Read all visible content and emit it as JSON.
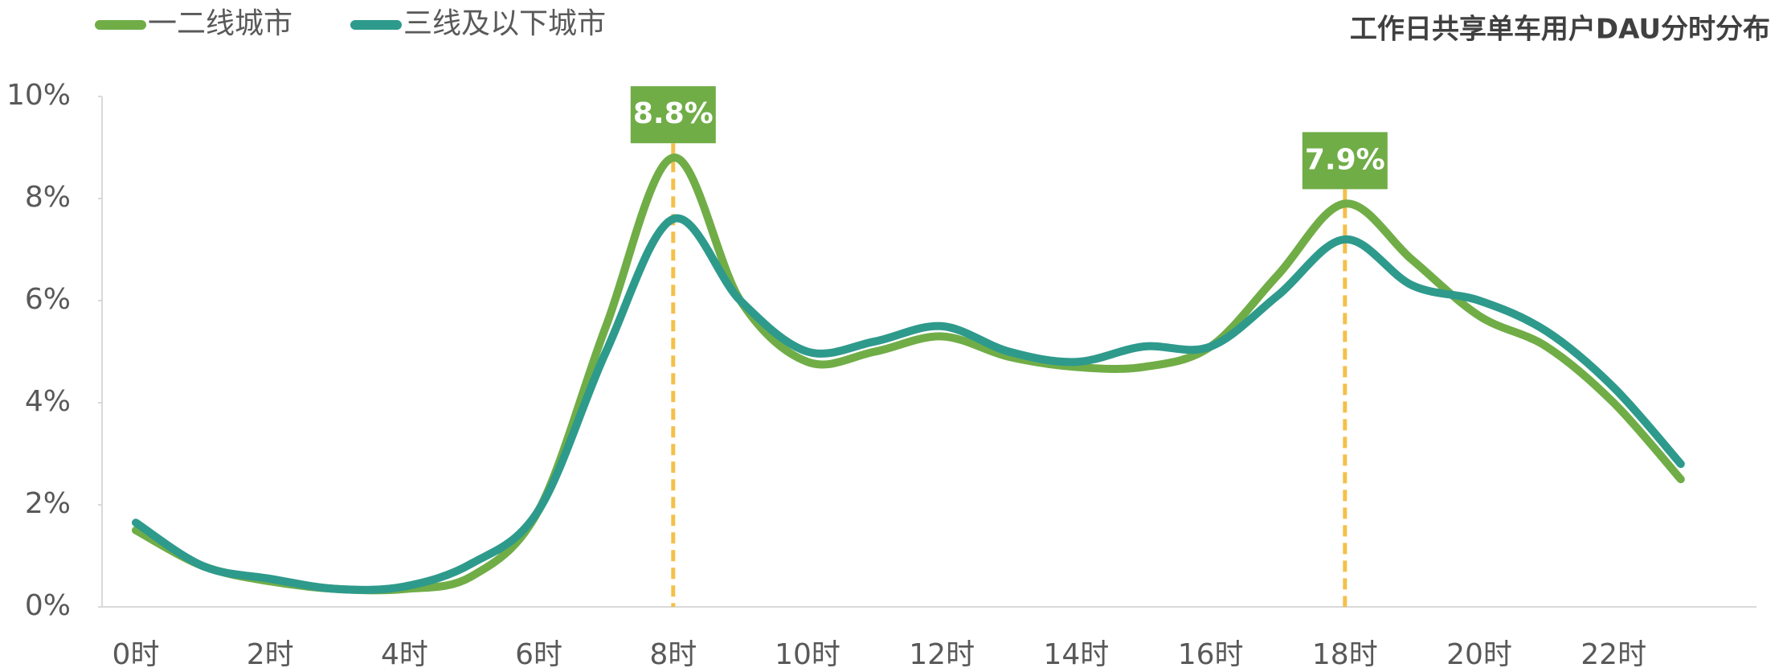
{
  "chart_data": {
    "type": "line",
    "title": "工作日共享单车用户DAU分时分布",
    "categories": [
      "0时",
      null,
      "2时",
      null,
      "4时",
      null,
      "6时",
      null,
      "8时",
      null,
      "10时",
      null,
      "12时",
      null,
      "14时",
      null,
      "16时",
      null,
      "18时",
      null,
      "20时",
      null,
      "22时",
      null
    ],
    "series": [
      {
        "name": "一二线城市",
        "color": "#70ad47",
        "values": [
          1.5,
          0.8,
          0.5,
          0.35,
          0.35,
          0.6,
          1.9,
          5.5,
          8.8,
          6.0,
          4.8,
          5.0,
          5.3,
          4.9,
          4.7,
          4.7,
          5.1,
          6.5,
          7.9,
          6.8,
          5.7,
          5.1,
          4.0,
          2.5
        ]
      },
      {
        "name": "三线及以下城市",
        "color": "#2e9a8c",
        "values": [
          1.65,
          0.8,
          0.55,
          0.35,
          0.4,
          0.85,
          1.9,
          5.0,
          7.6,
          6.0,
          5.0,
          5.2,
          5.5,
          5.0,
          4.8,
          5.1,
          5.1,
          6.1,
          7.2,
          6.3,
          6.0,
          5.4,
          4.3,
          2.8
        ]
      }
    ],
    "ylim": [
      0,
      10
    ],
    "yticks": [
      {
        "value": 0,
        "label": "0%"
      },
      {
        "value": 2,
        "label": "2%"
      },
      {
        "value": 4,
        "label": "4%"
      },
      {
        "value": 6,
        "label": "6%"
      },
      {
        "value": 8,
        "label": "8%"
      },
      {
        "value": 10,
        "label": "10%"
      }
    ],
    "annotations": [
      {
        "label": "8.8%",
        "index": 8,
        "value": 8.8
      },
      {
        "label": "7.9%",
        "index": 18,
        "value": 7.9
      }
    ],
    "annotation_color": "#70ad47",
    "guide_color": "#f4c04a",
    "legend": "top-left",
    "grid": false
  }
}
